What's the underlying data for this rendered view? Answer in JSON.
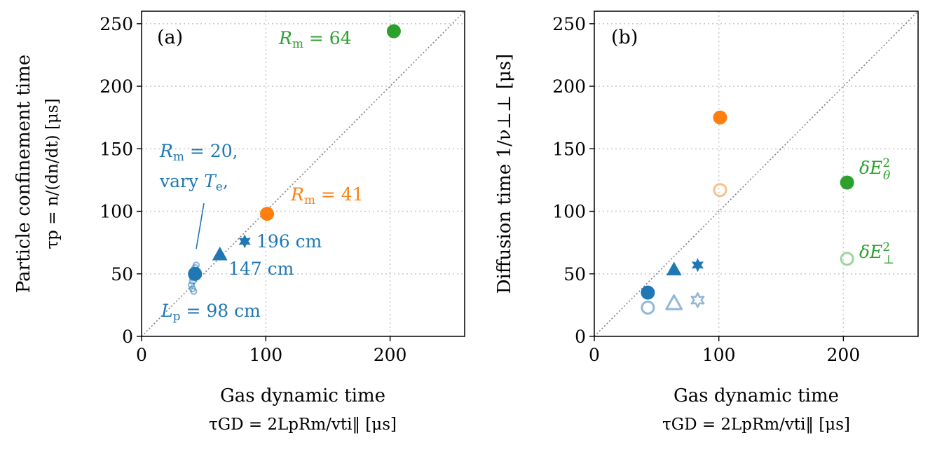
{
  "chart_data": [
    {
      "type": "scatter",
      "panel_label": "(a)",
      "xlabel": "Gas dynamic time",
      "xlabel_sub": "τGD = 2LpRm/vti‖  [μs]",
      "ylabel": "Particle confinement time",
      "ylabel_sub": "τp = n/(dn/dt) [μs]",
      "xlim": [
        0,
        260
      ],
      "ylim": [
        0,
        260
      ],
      "xticks": [
        "0",
        "100",
        "200"
      ],
      "yticks": [
        "0",
        "50",
        "100",
        "150",
        "200",
        "250"
      ],
      "grid": true,
      "identity_line": true,
      "series": [
        {
          "name": "Rm=20 Lp=98cm",
          "marker": "circle",
          "filled": true,
          "color": "#1f77b4",
          "points": [
            [
              43,
              50
            ]
          ]
        },
        {
          "name": "Rm=20 vary Te",
          "marker": "small-circle",
          "filled": false,
          "color": "#1f77b4",
          "alpha": 0.5,
          "points": [
            [
              44,
              57
            ],
            [
              43,
              55
            ],
            [
              42,
              53
            ],
            [
              43,
              51
            ],
            [
              41,
              47
            ],
            [
              41,
              44
            ],
            [
              40,
              41
            ],
            [
              41,
              38
            ],
            [
              42,
              36
            ]
          ]
        },
        {
          "name": "Rm=20 Lp=147cm",
          "marker": "triangle",
          "filled": true,
          "color": "#1f77b4",
          "points": [
            [
              63,
              65
            ]
          ]
        },
        {
          "name": "Rm=20 Lp=196cm",
          "marker": "star",
          "filled": true,
          "color": "#1f77b4",
          "points": [
            [
              83,
              76
            ]
          ]
        },
        {
          "name": "Rm=41",
          "marker": "circle",
          "filled": true,
          "color": "#ff7f0e",
          "points": [
            [
              101,
              98
            ]
          ]
        },
        {
          "name": "Rm=64",
          "marker": "circle",
          "filled": true,
          "color": "#2ca02c",
          "points": [
            [
              203,
              244
            ]
          ]
        }
      ],
      "annotations": [
        {
          "text": "Rm = 64",
          "color": "#2ca02c"
        },
        {
          "text": "Rm = 20,",
          "color": "#1f77b4"
        },
        {
          "text": "vary Te,",
          "color": "#1f77b4"
        },
        {
          "text": "Rm = 41",
          "color": "#ff7f0e"
        },
        {
          "text": "196 cm",
          "color": "#1f77b4"
        },
        {
          "text": "147 cm",
          "color": "#1f77b4"
        },
        {
          "text": "Lp = 98 cm",
          "color": "#1f77b4"
        }
      ]
    },
    {
      "type": "scatter",
      "panel_label": "(b)",
      "xlabel": "Gas dynamic time",
      "xlabel_sub": "τGD = 2LpRm/vti‖  [μs]",
      "ylabel": "Diffusion time 1/ν⊥⊥ [μs]",
      "xlim": [
        0,
        260
      ],
      "ylim": [
        0,
        260
      ],
      "xticks": [
        "0",
        "100",
        "200"
      ],
      "yticks": [
        "0",
        "50",
        "100",
        "150",
        "200",
        "250"
      ],
      "grid": true,
      "identity_line": true,
      "series": [
        {
          "name": "δEθ² Rm=20 98cm",
          "marker": "circle",
          "filled": true,
          "color": "#1f77b4",
          "points": [
            [
              43,
              35
            ]
          ]
        },
        {
          "name": "δEθ² Rm=20 147cm",
          "marker": "triangle",
          "filled": true,
          "color": "#1f77b4",
          "points": [
            [
              64,
              53
            ]
          ]
        },
        {
          "name": "δEθ² Rm=20 196cm",
          "marker": "star",
          "filled": true,
          "color": "#1f77b4",
          "points": [
            [
              83,
              57
            ]
          ]
        },
        {
          "name": "δEθ² Rm=41",
          "marker": "circle",
          "filled": true,
          "color": "#ff7f0e",
          "points": [
            [
              101,
              175
            ]
          ]
        },
        {
          "name": "δEθ² Rm=64",
          "marker": "circle",
          "filled": true,
          "color": "#2ca02c",
          "points": [
            [
              203,
              123
            ]
          ]
        },
        {
          "name": "δE⊥² Rm=20 98cm",
          "marker": "circle",
          "filled": false,
          "color": "#90b8d8",
          "points": [
            [
              43,
              23
            ]
          ]
        },
        {
          "name": "δE⊥² Rm=20 147cm",
          "marker": "triangle",
          "filled": false,
          "color": "#90b8d8",
          "points": [
            [
              64,
              26
            ]
          ]
        },
        {
          "name": "δE⊥² Rm=20 196cm",
          "marker": "star",
          "filled": false,
          "color": "#90b8d8",
          "points": [
            [
              83,
              29
            ]
          ]
        },
        {
          "name": "δE⊥² Rm=41",
          "marker": "circle",
          "filled": false,
          "color": "#f8bf8c",
          "points": [
            [
              101,
              117
            ]
          ]
        },
        {
          "name": "δE⊥² Rm=64",
          "marker": "circle",
          "filled": false,
          "color": "#9fd39f",
          "points": [
            [
              203,
              62
            ]
          ]
        }
      ],
      "annotations": [
        {
          "text": "δEθ²",
          "color": "#2ca02c"
        },
        {
          "text": "δE⊥²",
          "color": "#2ca02c"
        }
      ]
    }
  ]
}
